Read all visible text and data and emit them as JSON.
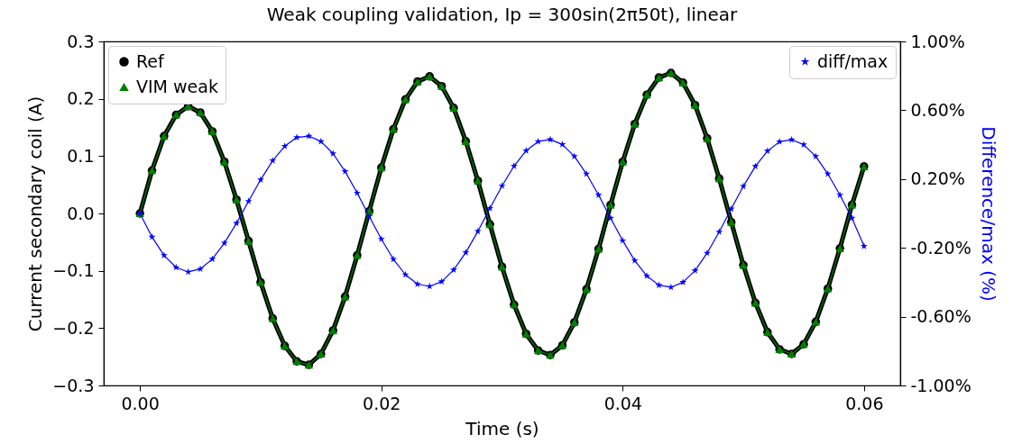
{
  "chart_data": {
    "type": "line",
    "title": "Weak coupling validation, Ip = 300sin(2π50t), linear",
    "xlabel": "Time (s)",
    "ylabel": "Current secondary coil (A)",
    "y2label": "Difference/max (%)",
    "x": [
      0,
      0.001,
      0.002,
      0.003,
      0.004,
      0.005,
      0.006,
      0.007,
      0.008,
      0.009,
      0.01,
      0.011,
      0.012,
      0.013,
      0.014,
      0.015,
      0.016,
      0.017,
      0.018,
      0.019,
      0.02,
      0.021,
      0.022,
      0.023,
      0.024,
      0.025,
      0.026,
      0.027,
      0.028,
      0.029,
      0.03,
      0.031,
      0.032,
      0.033,
      0.034,
      0.035,
      0.036,
      0.037,
      0.038,
      0.039,
      0.04,
      0.041,
      0.042,
      0.043,
      0.044,
      0.045,
      0.046,
      0.047,
      0.048,
      0.049,
      0.05,
      0.051,
      0.052,
      0.053,
      0.054,
      0.055,
      0.056,
      0.057,
      0.058,
      0.059,
      0.06
    ],
    "xlim": [
      -0.003,
      0.063
    ],
    "xticks": [
      {
        "value": 0,
        "label": "0.00"
      },
      {
        "value": 0.02,
        "label": "0.02"
      },
      {
        "value": 0.04,
        "label": "0.04"
      },
      {
        "value": 0.06,
        "label": "0.06"
      }
    ],
    "ylim": [
      -0.3,
      0.3
    ],
    "yticks": [
      {
        "value": -0.3,
        "label": "−0.3"
      },
      {
        "value": -0.2,
        "label": "−0.2"
      },
      {
        "value": -0.1,
        "label": "−0.1"
      },
      {
        "value": 0,
        "label": "0.0"
      },
      0.1,
      0.2,
      0.3
    ],
    "y2lim": [
      -1,
      1
    ],
    "y2ticks": [
      {
        "value": -1,
        "label": "-1.00%"
      },
      {
        "value": -0.6,
        "label": "-0.60%"
      },
      {
        "value": -0.2,
        "label": "-0.20%"
      },
      {
        "value": 0.2,
        "label": "0.20%"
      },
      {
        "value": 0.6,
        "label": "0.60%"
      },
      {
        "value": 1,
        "label": "1.00%"
      }
    ],
    "legend": "top left",
    "series": [
      {
        "name": "Ref",
        "color": "#000000",
        "marker": "circle",
        "values": [
          0,
          0.075,
          0.135,
          0.172,
          0.187,
          0.176,
          0.143,
          0.09,
          0.024,
          -0.048,
          -0.12,
          -0.183,
          -0.231,
          -0.258,
          -0.264,
          -0.245,
          -0.204,
          -0.145,
          -0.073,
          0.004,
          0.08,
          0.147,
          0.199,
          0.23,
          0.239,
          0.222,
          0.184,
          0.126,
          0.057,
          -0.019,
          -0.093,
          -0.159,
          -0.21,
          -0.239,
          -0.247,
          -0.23,
          -0.19,
          -0.132,
          -0.062,
          0.015,
          0.09,
          0.156,
          0.207,
          0.237,
          0.245,
          0.228,
          0.189,
          0.131,
          0.061,
          -0.015,
          -0.09,
          -0.156,
          -0.207,
          -0.237,
          -0.245,
          -0.228,
          -0.189,
          -0.131,
          -0.061,
          0.015,
          0.082
        ]
      },
      {
        "name": "VIM weak",
        "color": "#008000",
        "marker": "triangle",
        "values": [
          0,
          0.075,
          0.135,
          0.172,
          0.187,
          0.176,
          0.143,
          0.09,
          0.024,
          -0.048,
          -0.12,
          -0.183,
          -0.231,
          -0.258,
          -0.264,
          -0.245,
          -0.204,
          -0.145,
          -0.073,
          0.004,
          0.08,
          0.147,
          0.199,
          0.23,
          0.239,
          0.222,
          0.184,
          0.126,
          0.057,
          -0.019,
          -0.093,
          -0.159,
          -0.21,
          -0.239,
          -0.247,
          -0.23,
          -0.19,
          -0.132,
          -0.062,
          0.015,
          0.09,
          0.156,
          0.207,
          0.237,
          0.245,
          0.228,
          0.189,
          0.131,
          0.061,
          -0.015,
          -0.09,
          -0.156,
          -0.207,
          -0.237,
          -0.245,
          -0.228,
          -0.189,
          -0.131,
          -0.061,
          0.015,
          0.082
        ]
      },
      {
        "name": "diff/max",
        "color": "#0000ff",
        "marker": "star",
        "axis": "y2",
        "values": [
          0,
          -0.137,
          -0.244,
          -0.314,
          -0.34,
          -0.323,
          -0.265,
          -0.172,
          -0.057,
          0.071,
          0.196,
          0.307,
          0.391,
          0.442,
          0.45,
          0.418,
          0.348,
          0.244,
          0.119,
          -0.017,
          -0.149,
          -0.266,
          -0.356,
          -0.411,
          -0.424,
          -0.396,
          -0.328,
          -0.227,
          -0.104,
          0.03,
          0.16,
          0.276,
          0.365,
          0.418,
          0.43,
          0.401,
          0.332,
          0.23,
          0.107,
          -0.027,
          -0.158,
          -0.274,
          -0.363,
          -0.417,
          -0.429,
          -0.4,
          -0.332,
          -0.23,
          -0.107,
          0.027,
          0.158,
          0.274,
          0.363,
          0.417,
          0.429,
          0.4,
          0.332,
          0.23,
          0.107,
          -0.027,
          -0.19
        ]
      }
    ]
  }
}
